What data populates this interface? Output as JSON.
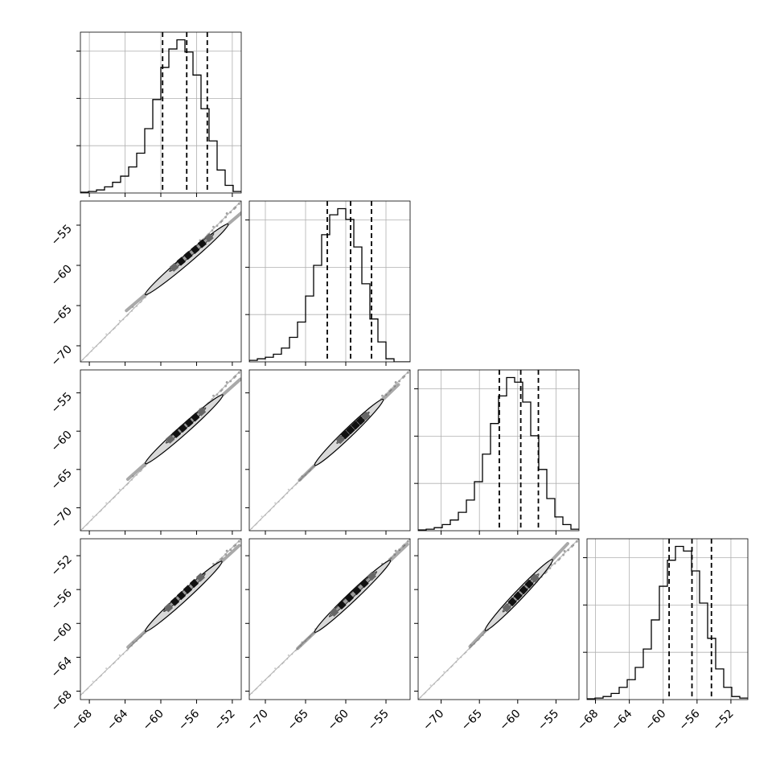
{
  "figure": {
    "type": "corner-plot",
    "parameters": 4,
    "colors": {
      "line": "#000000",
      "grid": "#b0b0b0",
      "contour_fill": "#d9d9d9",
      "points": "#555555",
      "background": "#ffffff"
    }
  },
  "chart_data": [
    {
      "type": "histogram",
      "name": "hist-1",
      "row": 0,
      "col": 0,
      "xlim": [
        -69,
        -51
      ],
      "bins_left": -69,
      "bin_width": 0.9,
      "counts": [
        0.005,
        0.01,
        0.02,
        0.04,
        0.07,
        0.11,
        0.17,
        0.26,
        0.42,
        0.61,
        0.82,
        0.94,
        1.0,
        0.92,
        0.77,
        0.55,
        0.34,
        0.15,
        0.05,
        0.01
      ],
      "quantiles": [
        -59.8,
        -57.1,
        -54.8
      ],
      "show_yticks": true,
      "n_yticks": 3
    },
    {
      "type": "histogram",
      "name": "hist-2",
      "row": 1,
      "col": 1,
      "xlim": [
        -72,
        -52
      ],
      "bins_left": -72,
      "bin_width": 1.0,
      "counts": [
        0.01,
        0.02,
        0.03,
        0.05,
        0.09,
        0.16,
        0.26,
        0.43,
        0.63,
        0.83,
        0.96,
        1.0,
        0.93,
        0.75,
        0.51,
        0.28,
        0.13,
        0.02,
        0.0,
        0.0
      ],
      "quantiles": [
        -62.3,
        -59.4,
        -56.8
      ],
      "show_yticks": true,
      "n_yticks": 3
    },
    {
      "type": "histogram",
      "name": "hist-3",
      "row": 2,
      "col": 2,
      "xlim": [
        -73,
        -52
      ],
      "bins_left": -73,
      "bin_width": 1.05,
      "counts": [
        0.005,
        0.01,
        0.02,
        0.04,
        0.07,
        0.12,
        0.2,
        0.32,
        0.5,
        0.7,
        0.88,
        1.0,
        0.97,
        0.84,
        0.62,
        0.4,
        0.21,
        0.09,
        0.04,
        0.01
      ],
      "quantiles": [
        -62.4,
        -59.6,
        -57.3
      ],
      "show_yticks": true,
      "n_yticks": 3
    },
    {
      "type": "histogram",
      "name": "hist-4",
      "row": 3,
      "col": 3,
      "xlim": [
        -69,
        -50
      ],
      "bins_left": -69,
      "bin_width": 0.95,
      "counts": [
        0.005,
        0.01,
        0.02,
        0.04,
        0.08,
        0.13,
        0.21,
        0.33,
        0.52,
        0.74,
        0.91,
        1.0,
        0.97,
        0.84,
        0.63,
        0.4,
        0.2,
        0.08,
        0.02,
        0.01
      ],
      "quantiles": [
        -59.3,
        -56.6,
        -54.3
      ],
      "show_yticks": true,
      "n_yticks": 3
    },
    {
      "type": "scatter-contour",
      "name": "corner-1-0",
      "row": 1,
      "col": 0,
      "xlim": [
        -69,
        -51
      ],
      "ylim": [
        -72,
        -52
      ],
      "line": [
        [
          -69,
          -72
        ],
        [
          -51,
          -52
        ]
      ],
      "contour": [
        [
          -61.6,
          -63.5
        ],
        [
          -52.6,
          -55.0
        ]
      ],
      "core": [
        [
          -58.9,
          -60.6
        ],
        [
          -54.2,
          -56.2
        ]
      ]
    },
    {
      "type": "scatter-contour",
      "name": "corner-2-0",
      "row": 2,
      "col": 0,
      "xlim": [
        -69,
        -51
      ],
      "ylim": [
        -73,
        -52
      ],
      "line": [
        [
          -69,
          -73
        ],
        [
          -51,
          -52
        ]
      ],
      "contour": [
        [
          -61.6,
          -64.1
        ],
        [
          -53.2,
          -55.4
        ]
      ],
      "core": [
        [
          -59.3,
          -61.4
        ],
        [
          -55.1,
          -57.1
        ]
      ]
    },
    {
      "type": "scatter-contour",
      "name": "corner-3-0",
      "row": 3,
      "col": 0,
      "xlim": [
        -69,
        -51
      ],
      "ylim": [
        -69,
        -50
      ],
      "line": [
        [
          -69,
          -68.5
        ],
        [
          -51,
          -50
        ]
      ],
      "contour": [
        [
          -61.6,
          -60.8
        ],
        [
          -53.3,
          -52.8
        ]
      ],
      "core": [
        [
          -59.5,
          -58.5
        ],
        [
          -55.2,
          -54.2
        ]
      ]
    },
    {
      "type": "scatter-contour",
      "name": "corner-2-1",
      "row": 2,
      "col": 1,
      "xlim": [
        -72,
        -52
      ],
      "ylim": [
        -73,
        -52
      ],
      "line": [
        [
          -72,
          -73
        ],
        [
          -52,
          -52
        ]
      ],
      "contour": [
        [
          -63.7,
          -64.3
        ],
        [
          -55.5,
          -56.0
        ]
      ],
      "core": [
        [
          -61.0,
          -61.4
        ],
        [
          -57.2,
          -57.7
        ]
      ]
    },
    {
      "type": "scatter-contour",
      "name": "corner-3-1",
      "row": 3,
      "col": 1,
      "xlim": [
        -72,
        -52
      ],
      "ylim": [
        -69,
        -50
      ],
      "line": [
        [
          -72,
          -68.5
        ],
        [
          -52,
          -50
        ]
      ],
      "contour": [
        [
          -63.7,
          -60.9
        ],
        [
          -54.6,
          -52.7
        ]
      ],
      "core": [
        [
          -61.9,
          -59.1
        ],
        [
          -56.3,
          -54.0
        ]
      ]
    },
    {
      "type": "scatter-contour",
      "name": "corner-3-2",
      "row": 3,
      "col": 2,
      "xlim": [
        -73,
        -52
      ],
      "ylim": [
        -69,
        -50
      ],
      "line": [
        [
          -73,
          -69
        ],
        [
          -52,
          -50
        ]
      ],
      "contour": [
        [
          -64.1,
          -60.7
        ],
        [
          -55.6,
          -52.6
        ]
      ],
      "core": [
        [
          -61.8,
          -58.5
        ],
        [
          -57.4,
          -54.3
        ]
      ]
    }
  ],
  "axes": {
    "x_ticks": [
      {
        "col": 0,
        "ticks": [
          -68,
          -64,
          -60,
          -56,
          -52
        ],
        "labels": [
          "−68",
          "−64",
          "−60",
          "−56",
          "−52"
        ]
      },
      {
        "col": 1,
        "ticks": [
          -70,
          -65,
          -60,
          -55
        ],
        "labels": [
          "−70",
          "−65",
          "−60",
          "−55"
        ]
      },
      {
        "col": 2,
        "ticks": [
          -70,
          -65,
          -60,
          -55
        ],
        "labels": [
          "−70",
          "−65",
          "−60",
          "−55"
        ]
      },
      {
        "col": 3,
        "ticks": [
          -68,
          -64,
          -60,
          -56,
          -52
        ],
        "labels": [
          "−68",
          "−64",
          "−60",
          "−56",
          "−52"
        ]
      }
    ],
    "y_ticks": [
      {
        "row": 1,
        "ticks": [
          -55,
          -60,
          -65,
          -70
        ],
        "labels": [
          "−55",
          "−60",
          "−65",
          "−70"
        ]
      },
      {
        "row": 2,
        "ticks": [
          -55,
          -60,
          -65,
          -70
        ],
        "labels": [
          "−55",
          "−60",
          "−65",
          "−70"
        ]
      },
      {
        "row": 3,
        "ticks": [
          -52,
          -56,
          -60,
          -64,
          -68
        ],
        "labels": [
          "−52",
          "−56",
          "−60",
          "−64",
          "−68"
        ]
      }
    ]
  }
}
